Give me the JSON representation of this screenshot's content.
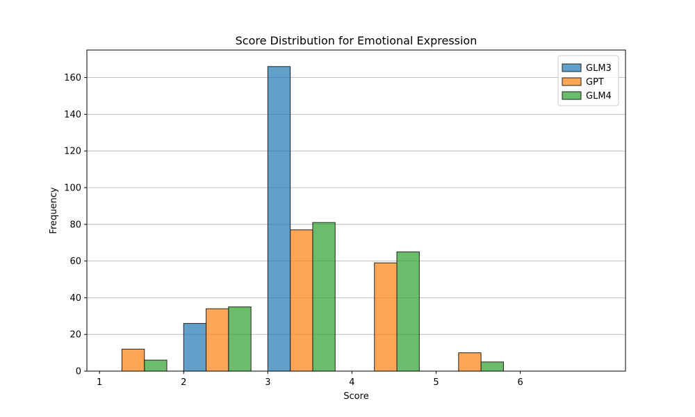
{
  "chart_data": {
    "type": "bar",
    "title": "Score Distribution for Emotional Expression",
    "xlabel": "Score",
    "ylabel": "Frequency",
    "xlim": [
      0.85,
      7.25
    ],
    "ylim": [
      0,
      175
    ],
    "xticks": [
      1,
      2,
      3,
      4,
      5,
      6
    ],
    "yticks": [
      0,
      20,
      40,
      60,
      80,
      100,
      120,
      140,
      160
    ],
    "grid": "y",
    "legend": "top-right",
    "bin_starts": [
      1.0,
      2.0,
      3.0,
      4.0,
      5.0,
      6.0
    ],
    "bar_width": 0.2667,
    "series": [
      {
        "name": "GLM3",
        "color": "#1f77b4",
        "values": [
          0,
          26,
          166,
          0,
          0,
          0
        ]
      },
      {
        "name": "GPT",
        "color": "#ff7f0e",
        "values": [
          12,
          34,
          77,
          59,
          10,
          0
        ]
      },
      {
        "name": "GLM4",
        "color": "#2ca02c",
        "values": [
          6,
          35,
          81,
          65,
          5,
          0
        ]
      }
    ]
  }
}
